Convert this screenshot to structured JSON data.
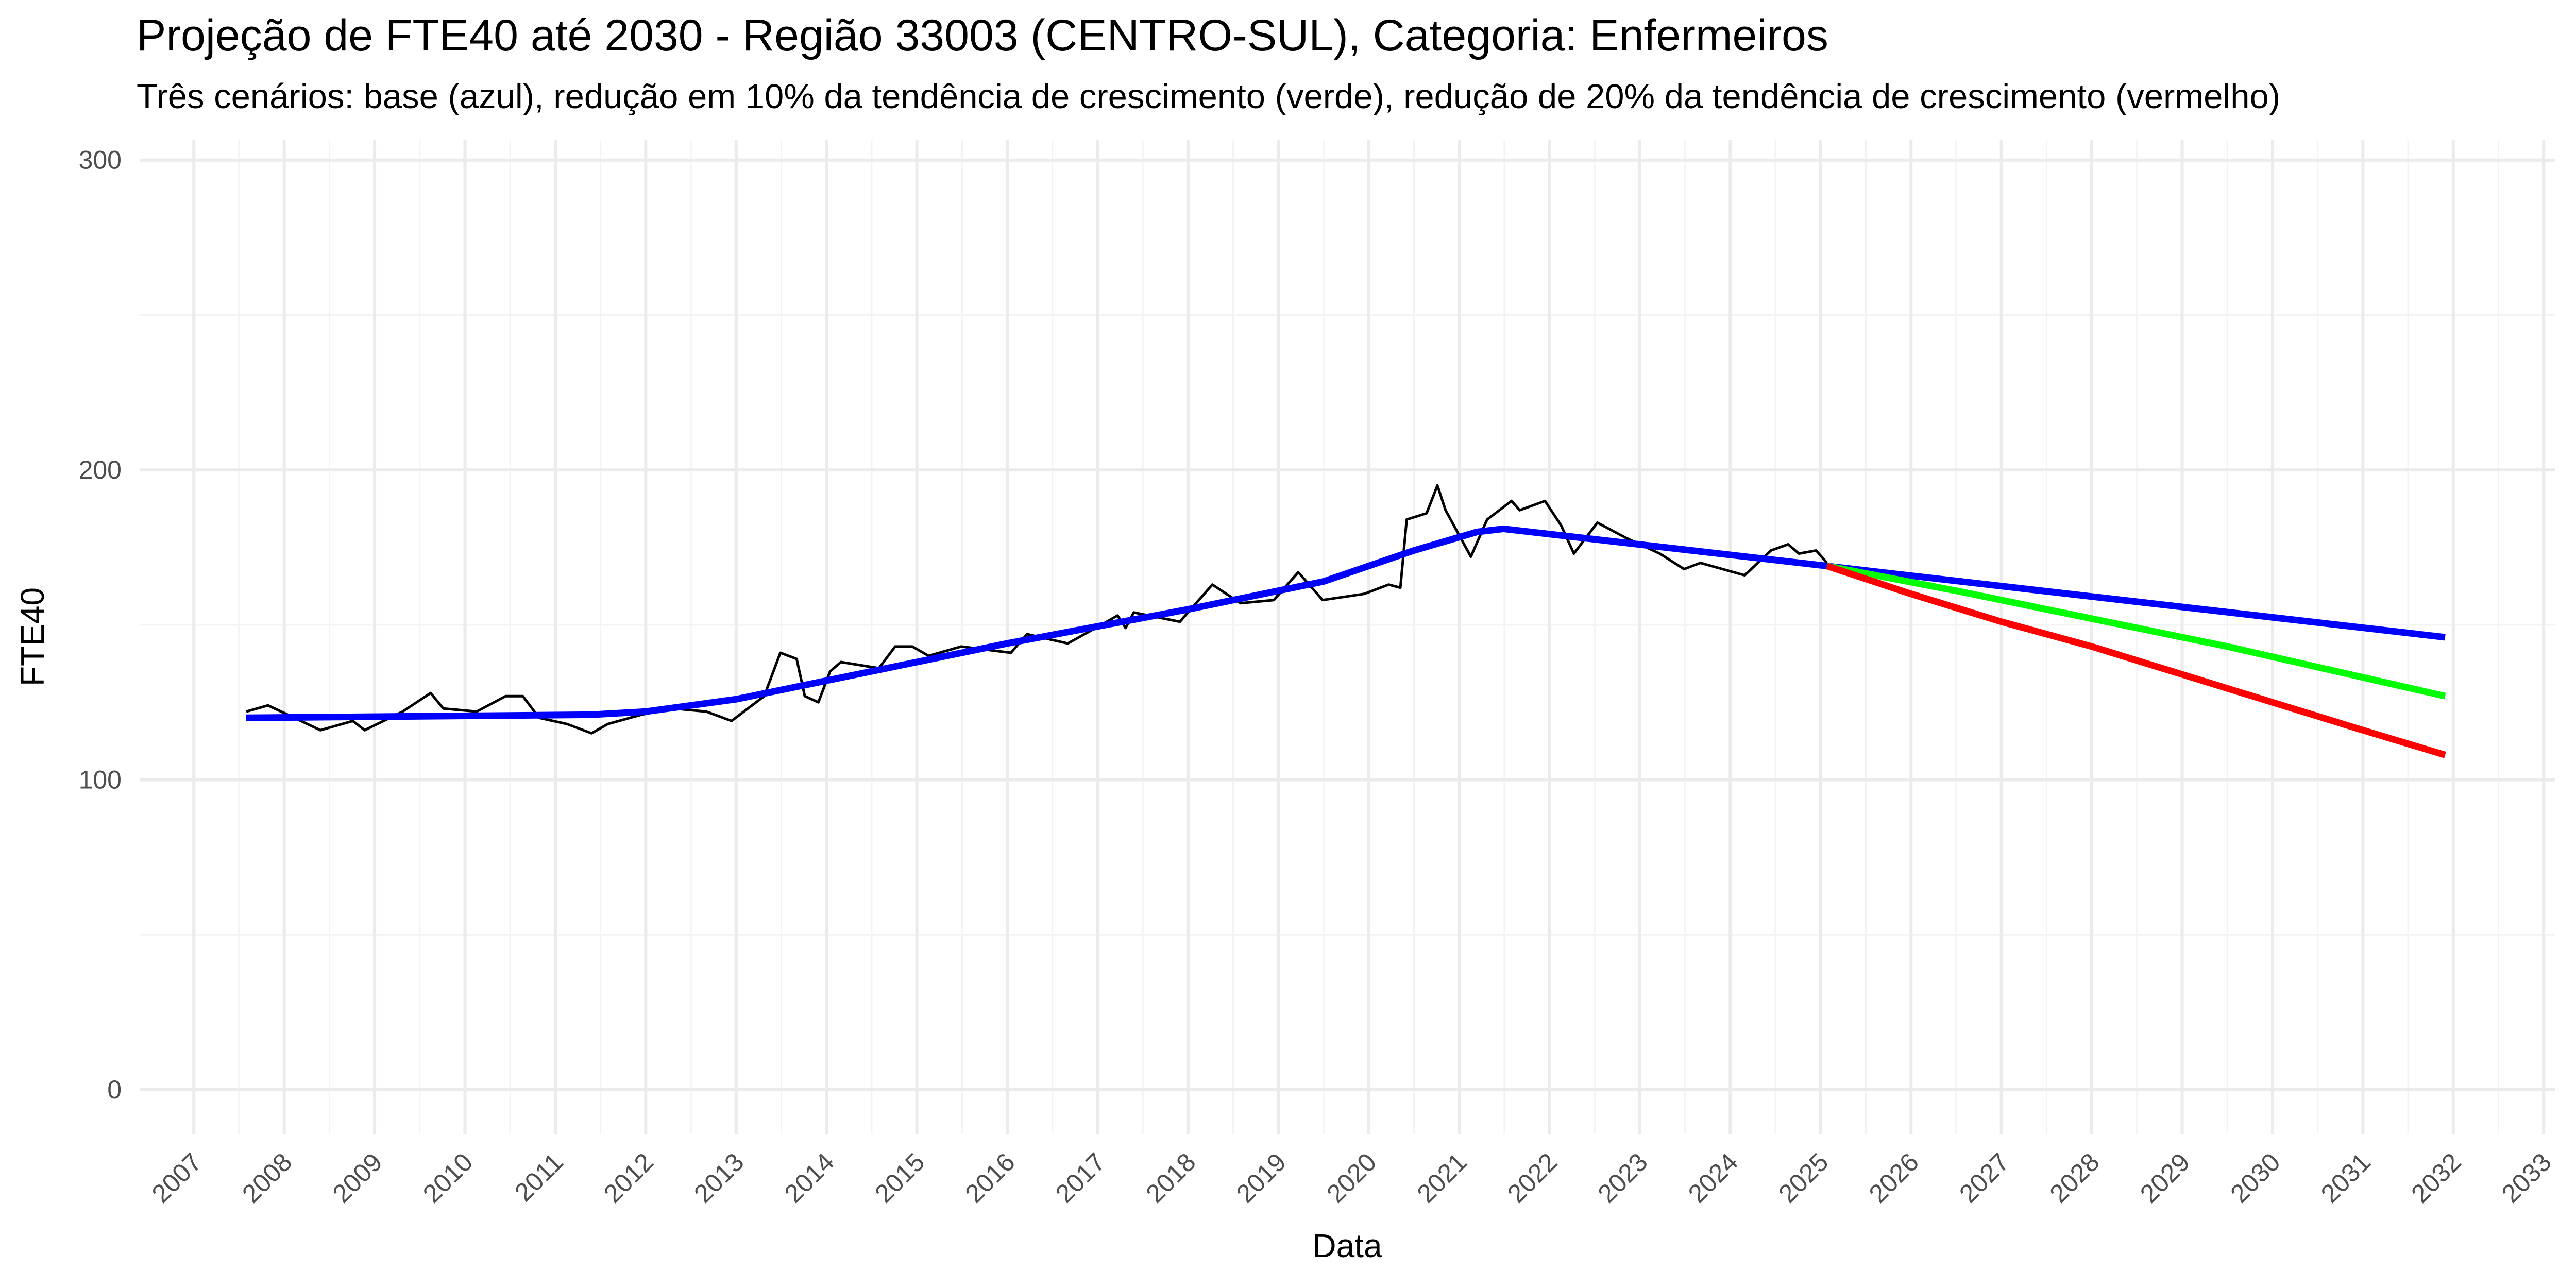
{
  "chart_data": {
    "type": "line",
    "title": "Projeção de FTE40 até 2030 - Região 33003 (CENTRO-SUL), Categoria: Enfermeiros",
    "subtitle": "Três cenários: base (azul), redução em 10% da tendência de crescimento (verde), redução de 20% da tendência de crescimento (vermelho)",
    "x_label": "Data",
    "y_label": "FTE40",
    "xlim": [
      2006.4,
      2033.13
    ],
    "ylim": [
      -14.3,
      306.6
    ],
    "xticks": [
      2007,
      2008,
      2009,
      2010,
      2011,
      2012,
      2013,
      2014,
      2015,
      2016,
      2017,
      2018,
      2019,
      2020,
      2021,
      2022,
      2023,
      2024,
      2025,
      2026,
      2027,
      2028,
      2029,
      2030,
      2031,
      2032,
      2033
    ],
    "yticks": [
      0,
      100,
      200,
      300
    ],
    "grid": true,
    "series": [
      {
        "color": "#000000",
        "width": "thin",
        "x": [
          2007.58,
          2007.82,
          2008.04,
          2008.4,
          2008.76,
          2008.89,
          2009.31,
          2009.62,
          2009.76,
          2010.13,
          2010.45,
          2010.64,
          2010.82,
          2011.13,
          2011.4,
          2011.58,
          2011.95,
          2012.31,
          2012.67,
          2012.95,
          2013.31,
          2013.49,
          2013.67,
          2013.76,
          2013.91,
          2014.04,
          2014.16,
          2014.58,
          2014.76,
          2014.95,
          2015.13,
          2015.49,
          2016.04,
          2016.22,
          2016.67,
          2017.04,
          2017.22,
          2017.31,
          2017.4,
          2017.91,
          2018.27,
          2018.58,
          2018.95,
          2019.22,
          2019.49,
          2019.95,
          2020.22,
          2020.35,
          2020.42,
          2020.64,
          2020.76,
          2020.85,
          2021.13,
          2021.31,
          2021.58,
          2021.67,
          2021.95,
          2022.13,
          2022.27,
          2022.53,
          2022.85,
          2023.22,
          2023.49,
          2023.67,
          2024.16,
          2024.45,
          2024.64,
          2024.76,
          2024.95,
          2025.07
        ],
        "values": [
          122,
          124,
          121,
          116,
          119,
          116,
          122,
          128,
          123,
          122,
          127,
          127,
          120,
          118,
          115,
          118,
          121,
          123,
          122,
          119,
          127,
          141,
          139,
          127,
          125,
          135,
          138,
          136,
          143,
          143,
          140,
          143,
          141,
          147,
          144,
          150,
          153,
          149,
          154,
          151,
          163,
          157,
          158,
          167,
          158,
          160,
          163,
          162,
          184,
          186,
          195,
          187,
          172,
          184,
          190,
          187,
          190,
          182,
          173,
          183,
          178,
          173,
          168,
          170,
          166,
          174,
          176,
          173,
          174,
          170
        ]
      },
      {
        "color": "#0000ff",
        "width": "thick",
        "x": [
          2007.58,
          2011.4,
          2012.0,
          2013.0,
          2014.0,
          2016.0,
          2018.0,
          2019.5,
          2020.5,
          2021.2,
          2021.49,
          2025.07,
          2031.91
        ],
        "values": [
          120,
          121,
          122,
          126,
          132,
          144,
          155,
          164,
          174,
          180,
          181,
          169,
          146
        ]
      },
      {
        "color": "#00ff00",
        "width": "thick",
        "x": [
          2025.07,
          2026.5,
          2028.0,
          2029.5,
          2031.91
        ],
        "values": [
          169,
          161,
          152,
          143,
          127
        ]
      },
      {
        "color": "#ff0000",
        "width": "thick",
        "x": [
          2025.07,
          2026.0,
          2027.0,
          2028.0,
          2029.0,
          2030.0,
          2031.0,
          2031.91
        ],
        "values": [
          169,
          160,
          151,
          143,
          134,
          125,
          116,
          108
        ]
      }
    ]
  }
}
